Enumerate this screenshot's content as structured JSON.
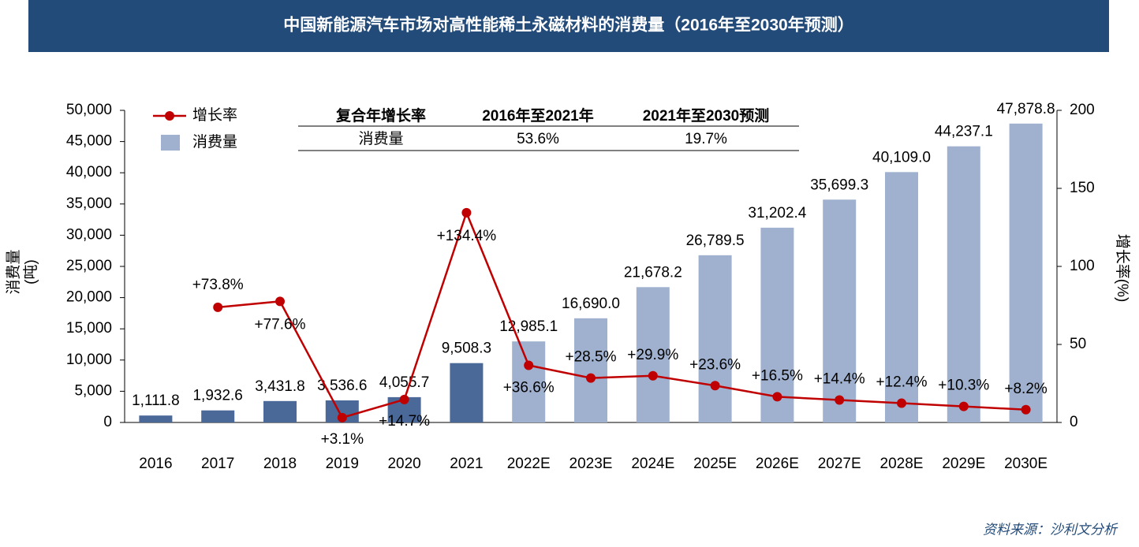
{
  "chart_data": {
    "type": "bar-line",
    "title": "中国新能源汽车市场对高性能稀土永磁材料的消费量（2016年至2030年预测）",
    "categories": [
      "2016",
      "2017",
      "2018",
      "2019",
      "2020",
      "2021",
      "2022E",
      "2023E",
      "2024E",
      "2025E",
      "2026E",
      "2027E",
      "2028E",
      "2029E",
      "2030E"
    ],
    "series": [
      {
        "name": "消费量",
        "type": "bar",
        "axis": "y",
        "color": "#9fb1cf",
        "colors": [
          "#4a6898",
          "#4a6898",
          "#4a6898",
          "#4a6898",
          "#4a6898",
          "#4a6898",
          "#9fb1cf",
          "#9fb1cf",
          "#9fb1cf",
          "#9fb1cf",
          "#9fb1cf",
          "#9fb1cf",
          "#9fb1cf",
          "#9fb1cf",
          "#9fb1cf"
        ],
        "values": [
          1111.8,
          1932.6,
          3431.8,
          3536.6,
          4055.7,
          9508.3,
          12985.1,
          16690.0,
          21678.2,
          26789.5,
          31202.4,
          35699.3,
          40109.0,
          44237.1,
          47878.8
        ],
        "value_labels": [
          "1,111.8",
          "1,932.6",
          "3,431.8",
          "3,536.6",
          "4,055.7",
          "9,508.3",
          "12,985.1",
          "16,690.0",
          "21,678.2",
          "26,789.5",
          "31,202.4",
          "35,699.3",
          "40,109.0",
          "44,237.1",
          "47,878.8"
        ]
      },
      {
        "name": "增长率",
        "type": "line",
        "axis": "y2",
        "color": "#c00000",
        "values": [
          null,
          73.8,
          77.6,
          3.1,
          14.7,
          134.4,
          36.6,
          28.5,
          29.9,
          23.6,
          16.5,
          14.4,
          12.4,
          10.3,
          8.2
        ],
        "value_labels": [
          null,
          "+73.8%",
          "+77.6%",
          "+3.1%",
          "+14.7%",
          "+134.4%",
          "+36.6%",
          "+28.5%",
          "+29.9%",
          "+23.6%",
          "+16.5%",
          "+14.4%",
          "+12.4%",
          "+10.3%",
          "+8.2%"
        ]
      }
    ],
    "y_label": [
      "消费量",
      "(吨)"
    ],
    "y2_label": "增长率(%)",
    "ylim": [
      0,
      50000
    ],
    "yticks": [
      0,
      {
        "value": 5000,
        "label": "5,000"
      },
      {
        "value": 10000,
        "label": "10,000"
      },
      {
        "value": 15000,
        "label": "15,000"
      },
      {
        "value": 20000,
        "label": "20,000"
      },
      {
        "value": 25000,
        "label": "25,000"
      },
      {
        "value": 30000,
        "label": "30,000"
      },
      {
        "value": 35000,
        "label": "35,000"
      },
      {
        "value": 40000,
        "label": "40,000"
      },
      {
        "value": 45000,
        "label": "45,000"
      },
      {
        "value": 50000,
        "label": "50,000"
      }
    ],
    "y2lim": [
      0,
      200
    ],
    "y2ticks": [
      0,
      50,
      100,
      150,
      200
    ],
    "grid": false,
    "legend": "top-left",
    "table": {
      "header": [
        "复合年增长率",
        "2016年至2021年",
        "2021年至2030预测"
      ],
      "rows": [
        [
          "消费量",
          "53.6%",
          "19.7%"
        ]
      ]
    },
    "source": "资料来源：沙利文分析"
  }
}
